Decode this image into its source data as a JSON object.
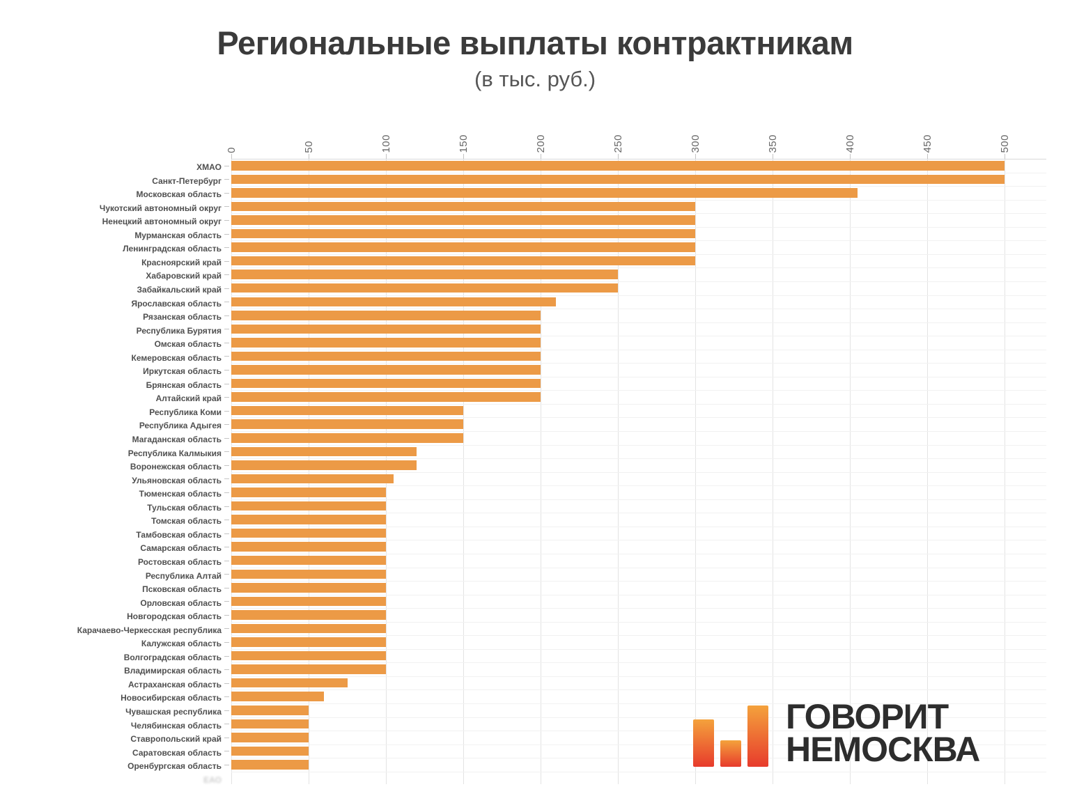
{
  "title": "Региональные выплаты контрактникам",
  "subtitle": "(в тыс. руб.)",
  "colors": {
    "bar": "#EC9A46",
    "grid": "#E3E3E3",
    "row_line": "#F1F1F1",
    "axis_line": "#D9D9D9",
    "label_text": "#4F4F4F",
    "tick_text": "#666666",
    "title_text": "#3B3B3B"
  },
  "logo": {
    "line1": "ГОВОРИТ",
    "line2": "НЕМОСКВА",
    "text_color": "#2D2D2D",
    "gradient_top": "#F4A23C",
    "gradient_bottom": "#E73B2C"
  },
  "chart_data": {
    "type": "bar",
    "orientation": "horizontal",
    "title": "Региональные выплаты контрактникам",
    "subtitle": "(в тыс. руб.)",
    "unit": "тыс. руб.",
    "xlim": [
      0,
      500
    ],
    "x_ticks": [
      0,
      50,
      100,
      150,
      200,
      250,
      300,
      350,
      400,
      450,
      500
    ],
    "grid": true,
    "bar_color": "#EC9A46",
    "categories": [
      "ХМАО",
      "Санкт-Петербург",
      "Московская область",
      "Чукотский автономный округ",
      "Ненецкий автономный округ",
      "Мурманская область",
      "Ленинградская область",
      "Красноярский край",
      "Хабаровский край",
      "Забайкальский край",
      "Ярославская область",
      "Рязанская область",
      "Республика Бурятия",
      "Омская область",
      "Кемеровская область",
      "Иркутская область",
      "Брянская область",
      "Алтайский край",
      "Республика Коми",
      "Республика Адыгея",
      "Магаданская область",
      "Республика Калмыкия",
      "Воронежская область",
      "Ульяновская область",
      "Тюменская область",
      "Тульская область",
      "Томская область",
      "Тамбовская область",
      "Самарская область",
      "Ростовская область",
      "Республика Алтай",
      "Псковская область",
      "Орловская область",
      "Новгородская область",
      "Карачаево-Черкесская республика",
      "Калужская область",
      "Волгоградская область",
      "Владимирская область",
      "Астраханская область",
      "Новосибирская область",
      "Чувашская республика",
      "Челябинская область",
      "Ставропольский край",
      "Саратовская область",
      "Оренбургская область"
    ],
    "values": [
      500,
      500,
      405,
      300,
      300,
      300,
      300,
      300,
      250,
      250,
      210,
      200,
      200,
      200,
      200,
      200,
      200,
      200,
      150,
      150,
      150,
      120,
      120,
      105,
      100,
      100,
      100,
      100,
      100,
      100,
      100,
      100,
      100,
      100,
      100,
      100,
      100,
      100,
      75,
      60,
      50,
      50,
      50,
      50,
      50
    ],
    "cutoff_partial_label": "ЕАО"
  }
}
